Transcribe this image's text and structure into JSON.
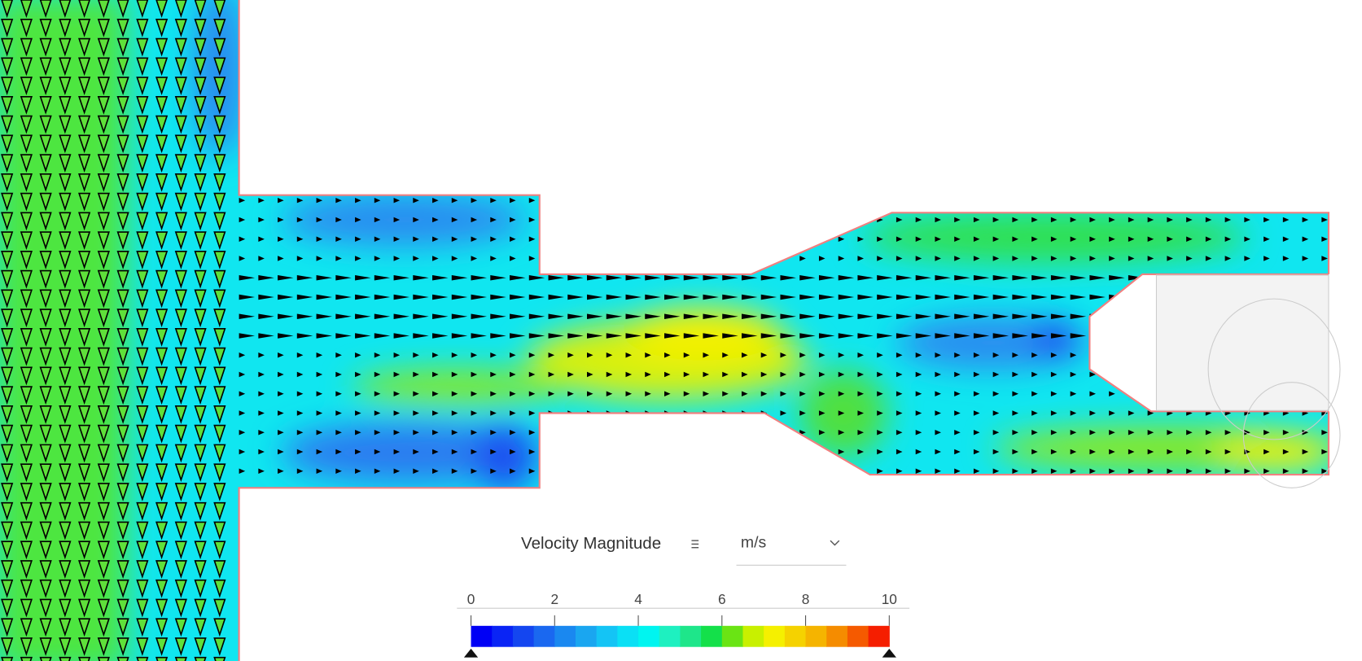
{
  "legend": {
    "title": "Velocity Magnitude",
    "unit": "m/s",
    "range": [
      0,
      10
    ],
    "ticks": [
      0,
      2,
      4,
      6,
      8,
      10
    ],
    "colors": [
      "#0000f5",
      "#0a24f5",
      "#1446f0",
      "#1a68f0",
      "#1a88f0",
      "#1aa6f0",
      "#14c4f5",
      "#0ae0f5",
      "#00f5f0",
      "#1ef0c0",
      "#1ee68a",
      "#14e04a",
      "#6ae414",
      "#c8f000",
      "#f5f000",
      "#f5d200",
      "#f5b400",
      "#f58c00",
      "#f55a00",
      "#f51e00"
    ]
  }
}
